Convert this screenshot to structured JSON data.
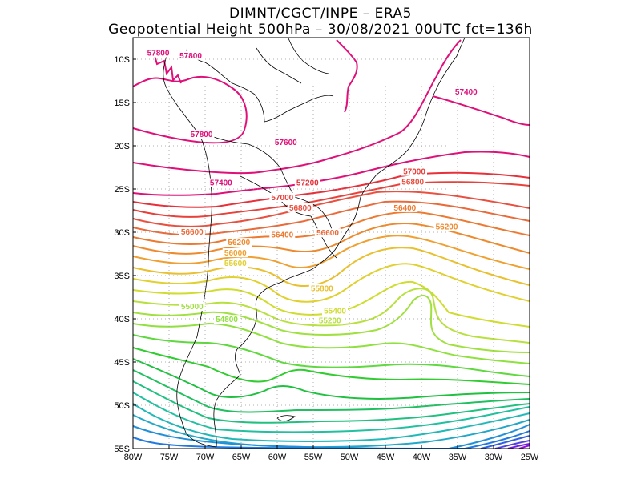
{
  "header": {
    "line1": "DIMNT/CGCT/INPE –  ERA5",
    "line2": "Geopotential Height 500hPa –  30/08/2021 00UTC fct=136h"
  },
  "axes": {
    "lon": {
      "min": -80,
      "max": -25
    },
    "lat": {
      "min": -55,
      "max": -7.5
    },
    "x_ticks": [
      {
        "value": -80,
        "label": "80W"
      },
      {
        "value": -75,
        "label": "75W"
      },
      {
        "value": -70,
        "label": "70W"
      },
      {
        "value": -65,
        "label": "65W"
      },
      {
        "value": -60,
        "label": "60W"
      },
      {
        "value": -55,
        "label": "55W"
      },
      {
        "value": -50,
        "label": "50W"
      },
      {
        "value": -45,
        "label": "45W"
      },
      {
        "value": -40,
        "label": "40W"
      },
      {
        "value": -35,
        "label": "35W"
      },
      {
        "value": -30,
        "label": "30W"
      },
      {
        "value": -25,
        "label": "25W"
      }
    ],
    "y_ticks": [
      {
        "value": -10,
        "label": "10S"
      },
      {
        "value": -15,
        "label": "15S"
      },
      {
        "value": -20,
        "label": "20S"
      },
      {
        "value": -25,
        "label": "25S"
      },
      {
        "value": -30,
        "label": "30S"
      },
      {
        "value": -35,
        "label": "35S"
      },
      {
        "value": -40,
        "label": "40S"
      },
      {
        "value": -45,
        "label": "45S"
      },
      {
        "value": -50,
        "label": "50S"
      },
      {
        "value": -55,
        "label": "55S"
      }
    ]
  },
  "colors": {
    "c57800": "#e0107a",
    "c57600": "#e0107a",
    "c57400": "#e0107a",
    "c57200": "#e8303a",
    "c57000": "#e8403a",
    "c56800": "#ea5040",
    "c56600": "#ea6a3a",
    "c56400": "#ec7a30",
    "c56200": "#ee8a2e",
    "c56000": "#f0a030",
    "c55800": "#e8c030",
    "c55600": "#e0d030",
    "c55400": "#d0dc30",
    "c55200": "#b8e040",
    "c55000": "#a0e040",
    "c54800": "#90e040",
    "c54600": "#60d840",
    "c54400": "#30cc30",
    "c54200": "#20c040",
    "c54000": "#20c060",
    "c53800": "#20c080",
    "c53600": "#20c0a0",
    "c53400": "#20b8b8",
    "c53200": "#20a8c8",
    "c53000": "#2090d8",
    "c52800": "#2078e0",
    "c52600": "#3060e0",
    "c52400": "#5040e0",
    "c52200": "#7020e0",
    "c52000": "#9010d8",
    "border": "#000000",
    "grid": "#999999"
  },
  "map_data": {
    "type": "contour",
    "variable": "Geopotential Height 500hPa",
    "contour_labels": [
      {
        "text": "57800",
        "lon": -76.5,
        "lat": -9.5,
        "level": 57800
      },
      {
        "text": "57800",
        "lon": -72.0,
        "lat": -9.8,
        "level": 57800
      },
      {
        "text": "57800",
        "lon": -70.5,
        "lat": -18.9,
        "level": 57800
      },
      {
        "text": "57600",
        "lon": -58.8,
        "lat": -19.8,
        "level": 57600
      },
      {
        "text": "57400",
        "lon": -33.8,
        "lat": -14.0,
        "level": 57400
      },
      {
        "text": "57400",
        "lon": -67.8,
        "lat": -24.5,
        "level": 57400
      },
      {
        "text": "57200",
        "lon": -55.8,
        "lat": -24.5,
        "level": 57200
      },
      {
        "text": "57000",
        "lon": -59.3,
        "lat": -26.2,
        "level": 57000
      },
      {
        "text": "57000",
        "lon": -41.0,
        "lat": -23.2,
        "level": 57000
      },
      {
        "text": "56800",
        "lon": -56.8,
        "lat": -27.4,
        "level": 56800
      },
      {
        "text": "56800",
        "lon": -41.2,
        "lat": -24.4,
        "level": 56800
      },
      {
        "text": "56600",
        "lon": -71.8,
        "lat": -30.2,
        "level": 56600
      },
      {
        "text": "56400",
        "lon": -59.3,
        "lat": -30.5,
        "level": 56400
      },
      {
        "text": "56600",
        "lon": -53.0,
        "lat": -30.3,
        "level": 56600
      },
      {
        "text": "56400",
        "lon": -42.3,
        "lat": -27.4,
        "level": 56400
      },
      {
        "text": "56200",
        "lon": -36.5,
        "lat": -29.6,
        "level": 56200
      },
      {
        "text": "56200",
        "lon": -65.3,
        "lat": -31.4,
        "level": 56200
      },
      {
        "text": "56000",
        "lon": -65.8,
        "lat": -32.6,
        "level": 56000
      },
      {
        "text": "55600",
        "lon": -65.8,
        "lat": -33.8,
        "level": 55600
      },
      {
        "text": "55800",
        "lon": -53.8,
        "lat": -36.7,
        "level": 55800
      },
      {
        "text": "55400",
        "lon": -52.0,
        "lat": -39.3,
        "level": 55400
      },
      {
        "text": "55200",
        "lon": -52.7,
        "lat": -40.4,
        "level": 55200
      },
      {
        "text": "55000",
        "lon": -71.8,
        "lat": -38.8,
        "level": 55000
      },
      {
        "text": "54800",
        "lon": -67.0,
        "lat": -40.3,
        "level": 54800
      }
    ]
  }
}
